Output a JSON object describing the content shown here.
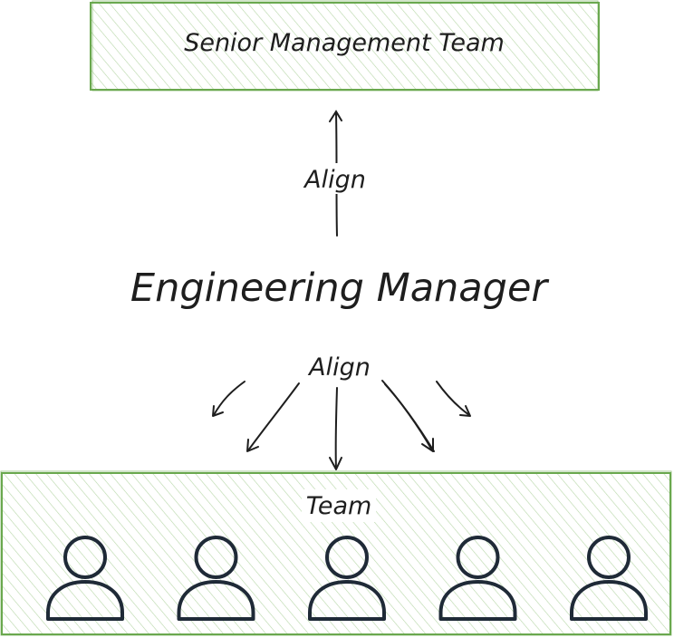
{
  "diagram": {
    "top_box": {
      "label": "Senior Management Team"
    },
    "center": {
      "label": "Engineering Manager"
    },
    "upward_link": {
      "label": "Align"
    },
    "downward_link": {
      "label": "Align"
    },
    "team_box": {
      "label": "Team",
      "member_count": 5
    }
  },
  "colors": {
    "box_stroke": "#6aa84f",
    "box_hatch": "#b7d7a8",
    "ink": "#1e1e1e",
    "person_stroke": "#1f2a37"
  }
}
